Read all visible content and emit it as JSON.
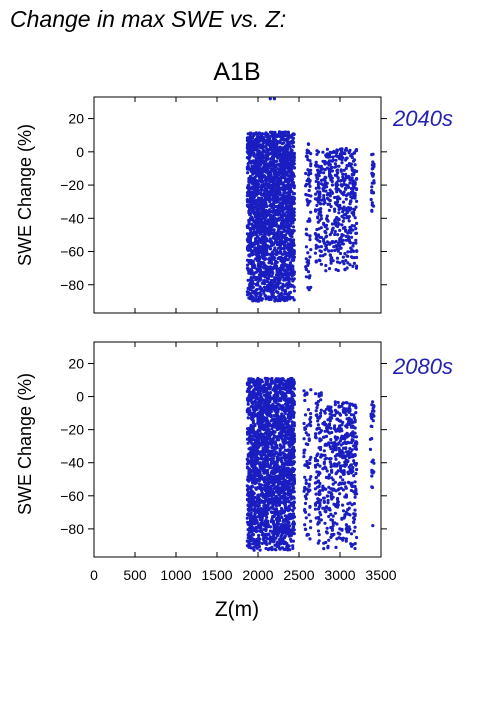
{
  "page_title": "Change in max SWE vs. Z:",
  "scenario": "A1B",
  "colors": {
    "points": "#1a1ec0",
    "period_label": "#2323b0",
    "axis": "#000000"
  },
  "chart_data": [
    {
      "type": "scatter",
      "period_label": "2040s",
      "xlabel": "Z(m)",
      "ylabel": "SWE Change (%)",
      "xlim": [
        0,
        3500
      ],
      "ylim": [
        -97,
        33
      ],
      "x_ticks": [
        0,
        500,
        1000,
        1500,
        2000,
        2500,
        3000,
        3500
      ],
      "y_ticks": [
        20,
        0,
        -20,
        -40,
        -60,
        -80
      ],
      "grid": false,
      "point_groups": [
        {
          "x_range": [
            1870,
            2450
          ],
          "y_range": [
            -90,
            12
          ],
          "count": 2400
        },
        {
          "x_range": [
            2580,
            2650
          ],
          "y_range": [
            -83,
            5
          ],
          "count": 70
        },
        {
          "x_range": [
            2700,
            2780
          ],
          "y_range": [
            -70,
            2
          ],
          "count": 90
        },
        {
          "x_range": [
            2790,
            3210
          ],
          "y_range": [
            -72,
            2
          ],
          "count": 450
        },
        {
          "x_range": [
            3380,
            3420
          ],
          "y_range": [
            -38,
            1
          ],
          "count": 30
        }
      ],
      "points": [
        {
          "x": 2150,
          "y": 32
        },
        {
          "x": 2200,
          "y": 32
        }
      ]
    },
    {
      "type": "scatter",
      "period_label": "2080s",
      "xlabel": "Z(m)",
      "ylabel": "SWE Change (%)",
      "xlim": [
        0,
        3500
      ],
      "ylim": [
        -97,
        33
      ],
      "x_ticks": [
        0,
        500,
        1000,
        1500,
        2000,
        2500,
        3000,
        3500
      ],
      "y_ticks": [
        20,
        0,
        -20,
        -40,
        -60,
        -80
      ],
      "grid": false,
      "point_groups": [
        {
          "x_range": [
            1870,
            2450
          ],
          "y_range": [
            -93,
            11
          ],
          "count": 2400
        },
        {
          "x_range": [
            2560,
            2650
          ],
          "y_range": [
            -90,
            6
          ],
          "count": 80
        },
        {
          "x_range": [
            2700,
            2780
          ],
          "y_range": [
            -90,
            3
          ],
          "count": 100
        },
        {
          "x_range": [
            2790,
            3210
          ],
          "y_range": [
            -92,
            -3
          ],
          "count": 480
        },
        {
          "x_range": [
            3370,
            3420
          ],
          "y_range": [
            -58,
            -3
          ],
          "count": 30
        }
      ],
      "points": [
        {
          "x": 3400,
          "y": -78
        }
      ]
    }
  ]
}
